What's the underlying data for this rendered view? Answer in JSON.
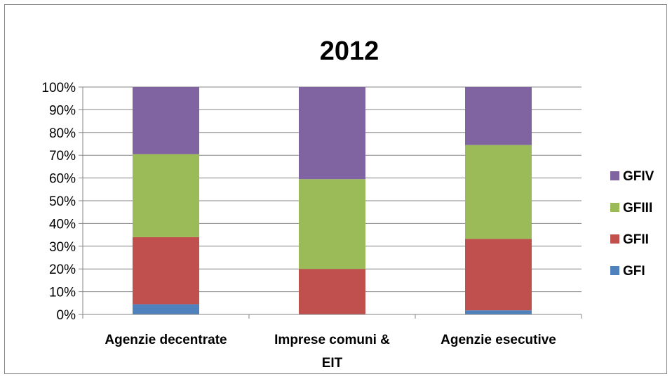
{
  "chart_data": {
    "type": "bar",
    "stacked": true,
    "percent": true,
    "title": "2012",
    "categories": [
      [
        "Agenzie decentrate"
      ],
      [
        "Imprese comuni &",
        "EIT"
      ],
      [
        "Agenzie esecutive"
      ]
    ],
    "ylim": [
      0,
      100
    ],
    "yticks": [
      "0%",
      "10%",
      "20%",
      "30%",
      "40%",
      "50%",
      "60%",
      "70%",
      "80%",
      "90%",
      "100%"
    ],
    "grid": true,
    "legend_position": "right",
    "series": [
      {
        "name": "GFI",
        "color": "#4F81BD",
        "values": [
          4.5,
          0,
          1.8
        ]
      },
      {
        "name": "GFII",
        "color": "#C0504D",
        "values": [
          29.5,
          20,
          31.4
        ]
      },
      {
        "name": "GFIII",
        "color": "#9BBB59",
        "values": [
          36.5,
          39.5,
          41.3
        ]
      },
      {
        "name": "GFIV",
        "color": "#8064A2",
        "values": [
          29.5,
          40.5,
          25.5
        ]
      }
    ]
  }
}
